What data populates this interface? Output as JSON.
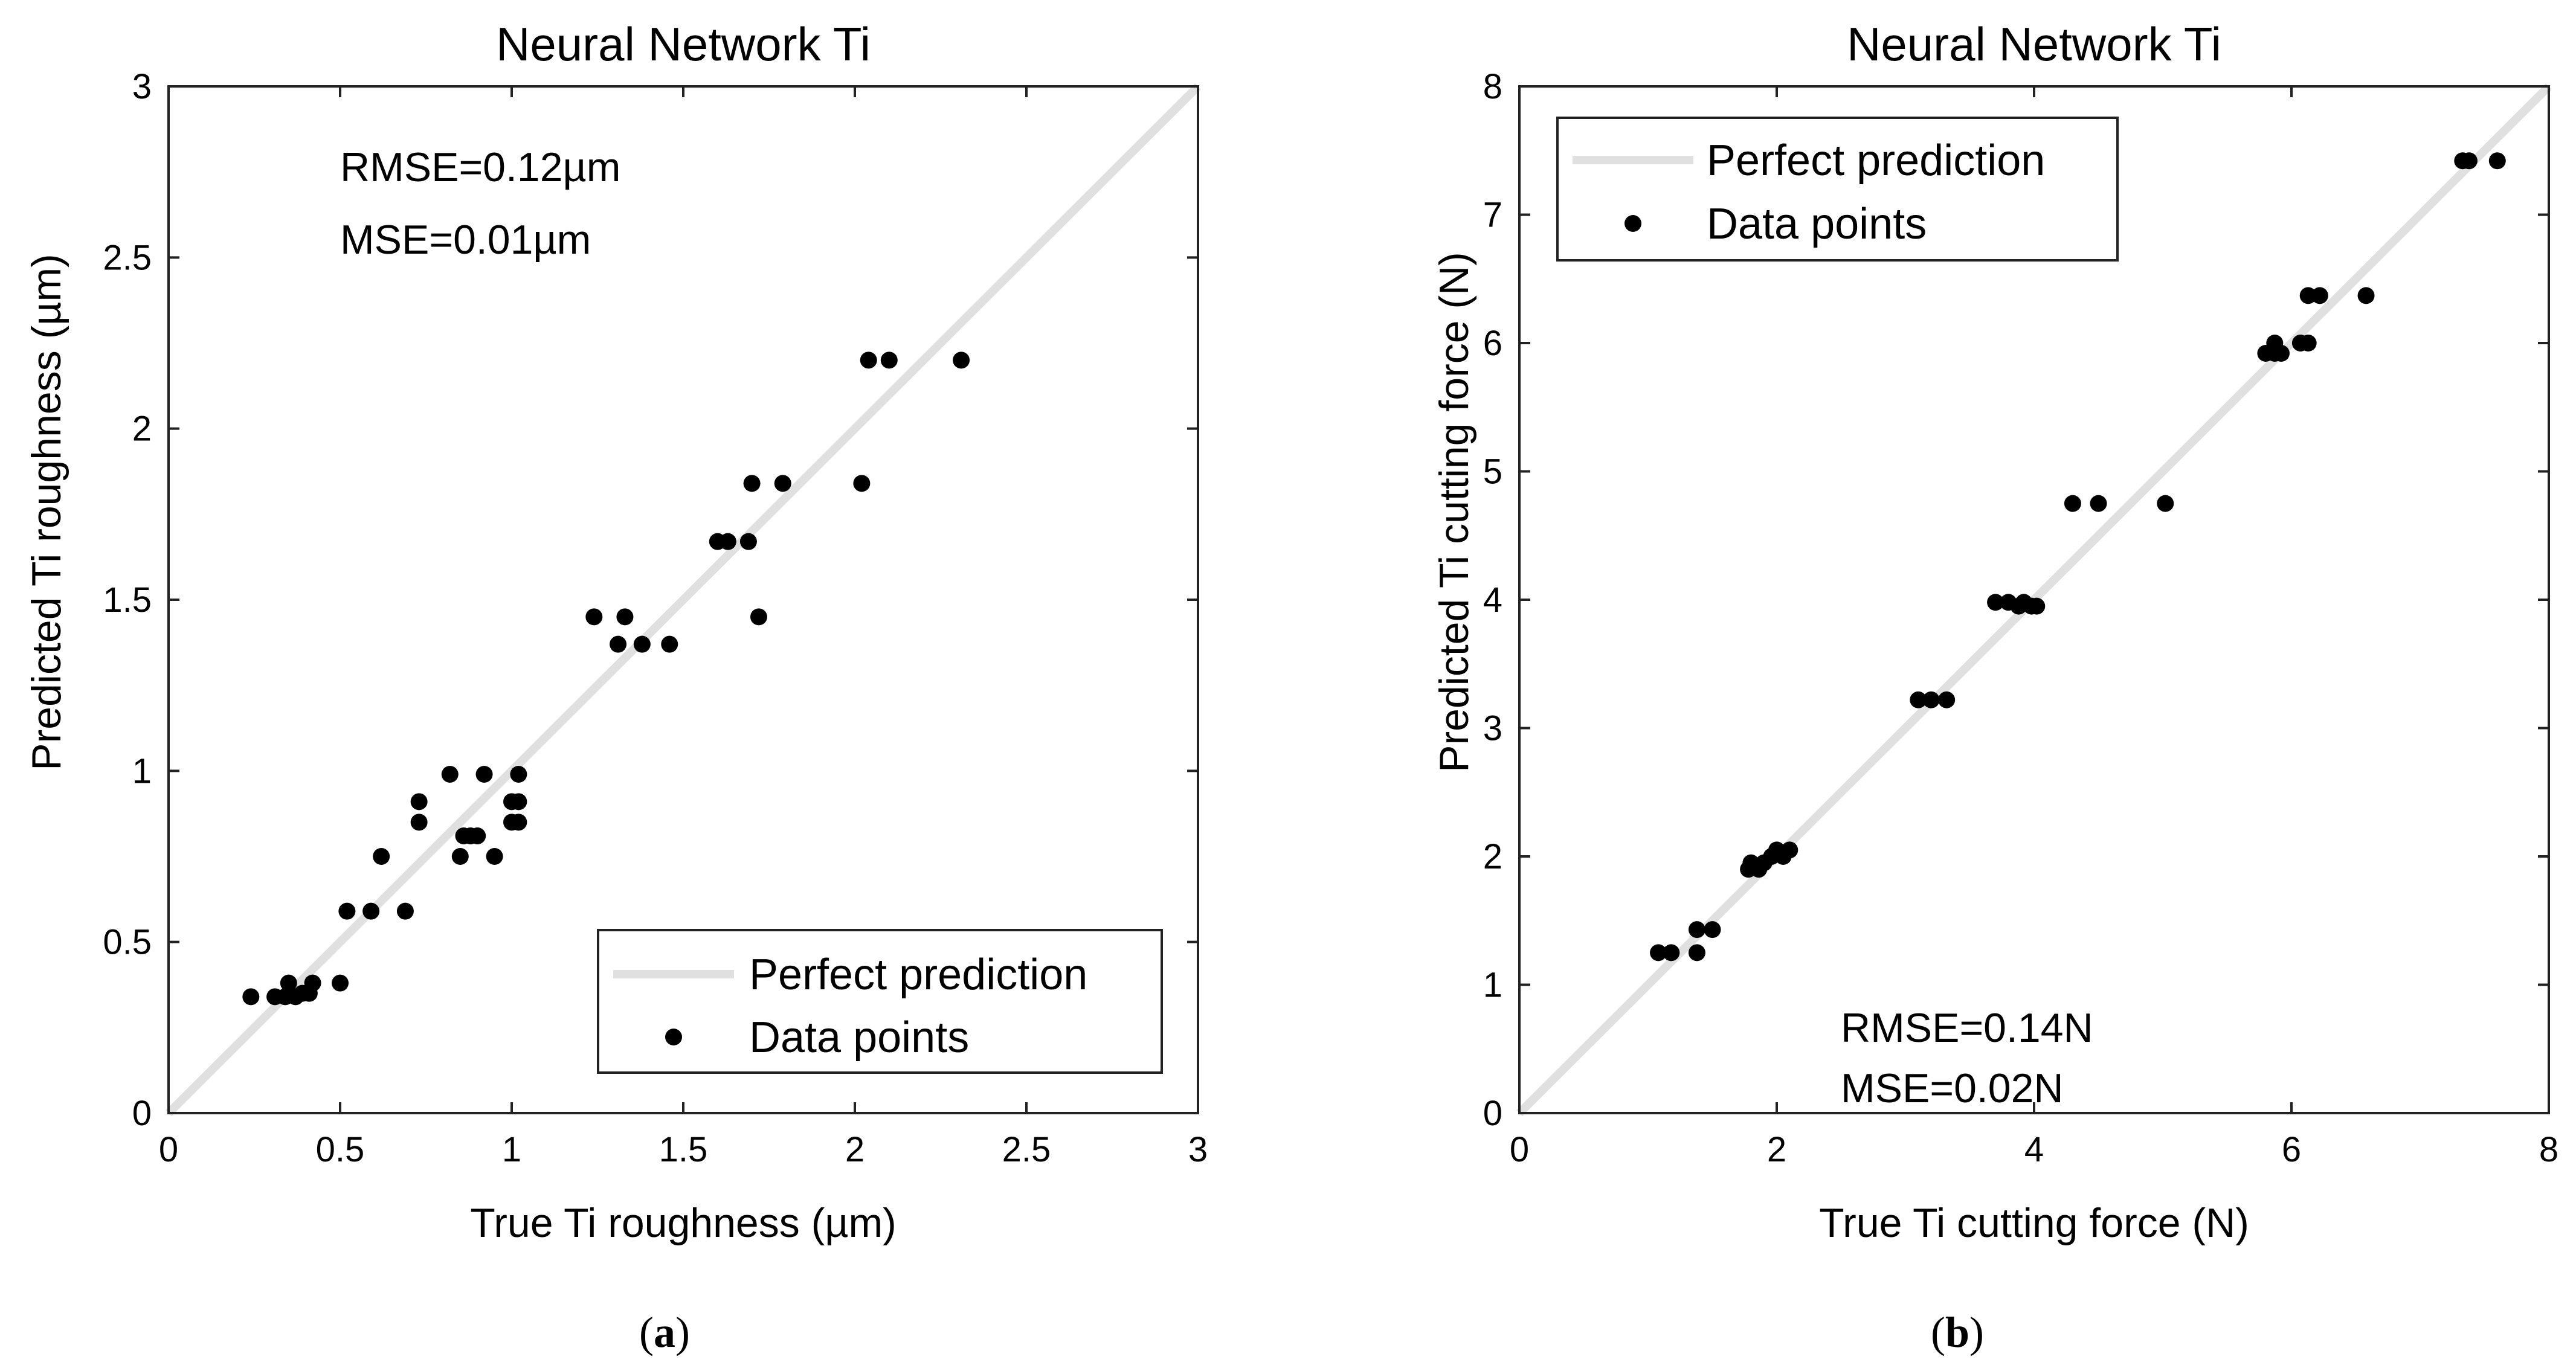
{
  "chart_data": [
    {
      "type": "scatter",
      "title": "Neural Network Ti",
      "xlabel": "True Ti roughness (µm)",
      "ylabel": "Predicted Ti roughness (µm)",
      "xlim": [
        0,
        3
      ],
      "ylim": [
        0,
        3
      ],
      "xticks": [
        0,
        0.5,
        1,
        1.5,
        2,
        2.5,
        3
      ],
      "xtick_labels": [
        "0",
        "0.5",
        "1",
        "1.5",
        "2",
        "2.5",
        "3"
      ],
      "yticks": [
        0,
        0.5,
        1,
        1.5,
        2,
        2.5,
        3
      ],
      "ytick_labels": [
        "0",
        "0.5",
        "1",
        "1.5",
        "2",
        "2.5",
        "3"
      ],
      "legend": {
        "position": "bottom-right",
        "line_label": "Perfect prediction",
        "points_label": "Data points"
      },
      "annotations": [
        "RMSE=0.12µm",
        "MSE=0.01µm"
      ],
      "annotation_position": "top-left",
      "reference_line": {
        "name": "Perfect prediction",
        "color": "#e0e0e0"
      },
      "series": [
        {
          "name": "Data points",
          "color": "#000000",
          "points": [
            [
              0.24,
              0.34
            ],
            [
              0.31,
              0.34
            ],
            [
              0.34,
              0.34
            ],
            [
              0.35,
              0.38
            ],
            [
              0.37,
              0.34
            ],
            [
              0.39,
              0.35
            ],
            [
              0.41,
              0.35
            ],
            [
              0.42,
              0.38
            ],
            [
              0.5,
              0.38
            ],
            [
              0.52,
              0.59
            ],
            [
              0.59,
              0.59
            ],
            [
              0.62,
              0.75
            ],
            [
              0.69,
              0.59
            ],
            [
              0.73,
              0.85
            ],
            [
              0.73,
              0.91
            ],
            [
              0.82,
              0.99
            ],
            [
              0.85,
              0.75
            ],
            [
              0.86,
              0.81
            ],
            [
              0.88,
              0.81
            ],
            [
              0.9,
              0.81
            ],
            [
              0.92,
              0.99
            ],
            [
              0.95,
              0.75
            ],
            [
              1.0,
              0.85
            ],
            [
              1.0,
              0.91
            ],
            [
              1.02,
              0.85
            ],
            [
              1.02,
              0.91
            ],
            [
              1.02,
              0.99
            ],
            [
              1.24,
              1.45
            ],
            [
              1.31,
              1.37
            ],
            [
              1.33,
              1.45
            ],
            [
              1.38,
              1.37
            ],
            [
              1.46,
              1.37
            ],
            [
              1.6,
              1.67
            ],
            [
              1.63,
              1.67
            ],
            [
              1.69,
              1.67
            ],
            [
              1.7,
              1.84
            ],
            [
              1.72,
              1.45
            ],
            [
              1.79,
              1.84
            ],
            [
              2.02,
              1.84
            ],
            [
              2.04,
              2.2
            ],
            [
              2.1,
              2.2
            ],
            [
              2.31,
              2.2
            ]
          ]
        }
      ],
      "caption": "(a)",
      "caption_letter": "a"
    },
    {
      "type": "scatter",
      "title": "Neural Network Ti",
      "xlabel": "True Ti cutting force (N)",
      "ylabel": "Predicted Ti cutting force (N)",
      "xlim": [
        0,
        8
      ],
      "ylim": [
        0,
        8
      ],
      "xticks": [
        0,
        2,
        4,
        6,
        8
      ],
      "xtick_labels": [
        "0",
        "2",
        "4",
        "6",
        "8"
      ],
      "yticks": [
        0,
        1,
        2,
        3,
        4,
        5,
        6,
        7,
        8
      ],
      "ytick_labels": [
        "0",
        "1",
        "2",
        "3",
        "4",
        "5",
        "6",
        "7",
        "8"
      ],
      "legend": {
        "position": "top-left",
        "line_label": "Perfect prediction",
        "points_label": "Data points"
      },
      "annotations": [
        "RMSE=0.14N",
        "MSE=0.02N"
      ],
      "annotation_position": "bottom-center",
      "reference_line": {
        "name": "Perfect prediction",
        "color": "#e0e0e0"
      },
      "series": [
        {
          "name": "Data points",
          "color": "#000000",
          "points": [
            [
              1.08,
              1.25
            ],
            [
              1.18,
              1.25
            ],
            [
              1.38,
              1.25
            ],
            [
              1.38,
              1.43
            ],
            [
              1.5,
              1.43
            ],
            [
              1.78,
              1.9
            ],
            [
              1.8,
              1.95
            ],
            [
              1.86,
              1.9
            ],
            [
              1.9,
              1.95
            ],
            [
              1.96,
              2.0
            ],
            [
              2.0,
              2.05
            ],
            [
              2.05,
              2.0
            ],
            [
              2.1,
              2.05
            ],
            [
              3.1,
              3.22
            ],
            [
              3.2,
              3.22
            ],
            [
              3.32,
              3.22
            ],
            [
              3.7,
              3.98
            ],
            [
              3.8,
              3.98
            ],
            [
              3.88,
              3.95
            ],
            [
              3.92,
              3.98
            ],
            [
              3.98,
              3.95
            ],
            [
              4.02,
              3.95
            ],
            [
              4.3,
              4.75
            ],
            [
              4.5,
              4.75
            ],
            [
              5.02,
              4.75
            ],
            [
              5.8,
              5.92
            ],
            [
              5.87,
              5.92
            ],
            [
              5.87,
              6.0
            ],
            [
              5.92,
              5.92
            ],
            [
              6.07,
              6.0
            ],
            [
              6.13,
              6.0
            ],
            [
              6.13,
              6.37
            ],
            [
              6.22,
              6.37
            ],
            [
              6.58,
              6.37
            ],
            [
              7.33,
              7.42
            ],
            [
              7.38,
              7.42
            ],
            [
              7.6,
              7.42
            ]
          ]
        }
      ],
      "caption": "(b)",
      "caption_letter": "b"
    }
  ]
}
